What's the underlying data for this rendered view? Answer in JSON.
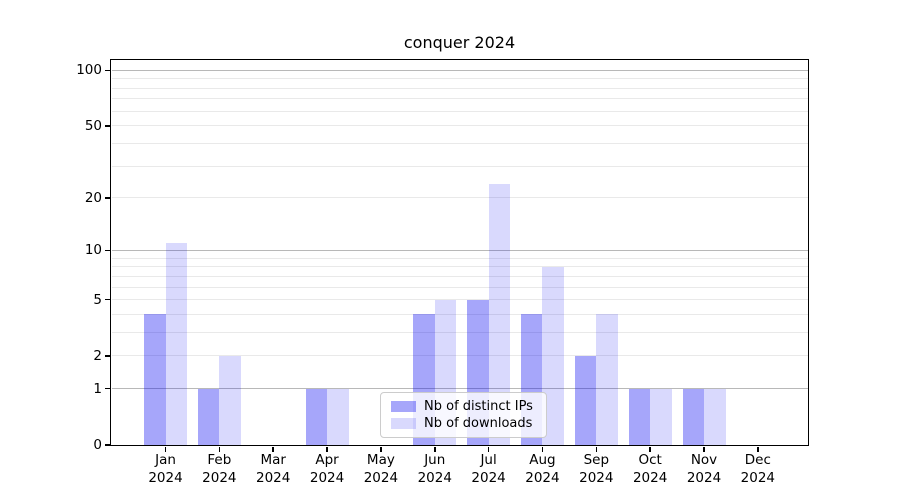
{
  "chart_data": {
    "type": "bar",
    "title": "conquer 2024",
    "months": [
      "Jan",
      "Feb",
      "Mar",
      "Apr",
      "May",
      "Jun",
      "Jul",
      "Aug",
      "Sep",
      "Oct",
      "Nov",
      "Dec"
    ],
    "year": "2024",
    "series": [
      {
        "name": "Nb of distinct IPs",
        "color_hex": "#0000f0",
        "alpha": 0.35,
        "values": [
          4,
          1,
          0,
          1,
          0,
          4,
          5,
          4,
          2,
          1,
          1,
          0
        ]
      },
      {
        "name": "Nb of downloads",
        "color_hex": "#0000f0",
        "alpha": 0.15,
        "values": [
          11,
          2,
          0,
          1,
          0,
          5,
          24,
          8,
          4,
          1,
          1,
          0
        ]
      }
    ],
    "y_axis": {
      "scale": "log1p",
      "tick_values": [
        0,
        1,
        2,
        5,
        10,
        20,
        50,
        100
      ],
      "ylim": [
        0,
        113
      ]
    },
    "gridlines": {
      "major_values": [
        1,
        10,
        100
      ],
      "minor_values": [
        2,
        3,
        4,
        5,
        6,
        7,
        8,
        9,
        20,
        30,
        40,
        50,
        60,
        70,
        80,
        90
      ],
      "major_color": "#b8b8b8",
      "minor_color": "#e9e9e9"
    },
    "legend": {
      "location": "lower center",
      "entries": [
        "Nb of distinct IPs",
        "Nb of downloads"
      ]
    }
  }
}
